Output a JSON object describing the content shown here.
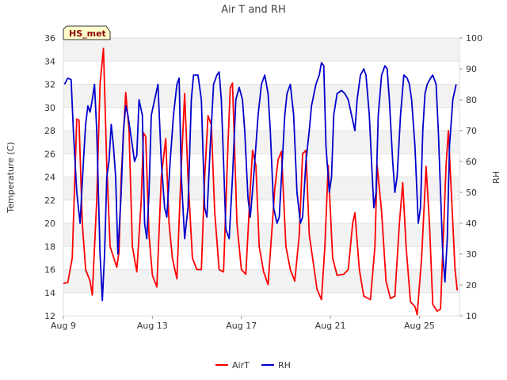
{
  "chart_data": {
    "type": "line",
    "title": "Air T and RH",
    "badge": "HS_met",
    "xlabel": "",
    "ylabel_left": "Temperature (C)",
    "ylabel_right": "RH",
    "x_unit": "day_of_august",
    "xlim": [
      9,
      26.8
    ],
    "ylim_left": [
      12,
      36
    ],
    "ylim_right": [
      10,
      100
    ],
    "x_ticks": [
      {
        "value": 9,
        "label": "Aug 9"
      },
      {
        "value": 13,
        "label": "Aug 13"
      },
      {
        "value": 17,
        "label": "Aug 17"
      },
      {
        "value": 21,
        "label": "Aug 21"
      },
      {
        "value": 25,
        "label": "Aug 25"
      }
    ],
    "y_ticks_left": [
      "12",
      "14",
      "16",
      "18",
      "20",
      "22",
      "24",
      "26",
      "28",
      "30",
      "32",
      "34",
      "36"
    ],
    "y_ticks_right": [
      "10",
      "20",
      "30",
      "40",
      "50",
      "60",
      "70",
      "80",
      "90",
      "100"
    ],
    "legend_position": "bottom-center",
    "series": [
      {
        "name": "AirT",
        "color": "#ff0000",
        "axis": "left",
        "points": [
          [
            9.0,
            14.8
          ],
          [
            9.2,
            14.9
          ],
          [
            9.4,
            17.0
          ],
          [
            9.6,
            29.0
          ],
          [
            9.7,
            28.9
          ],
          [
            9.85,
            20.0
          ],
          [
            10.0,
            16.0
          ],
          [
            10.2,
            15.0
          ],
          [
            10.3,
            13.8
          ],
          [
            10.5,
            22.0
          ],
          [
            10.65,
            32.0
          ],
          [
            10.8,
            35.1
          ],
          [
            10.95,
            25.0
          ],
          [
            11.1,
            18.0
          ],
          [
            11.3,
            16.8
          ],
          [
            11.4,
            16.2
          ],
          [
            11.5,
            17.5
          ],
          [
            11.6,
            24.0
          ],
          [
            11.8,
            31.3
          ],
          [
            11.95,
            28.0
          ],
          [
            12.1,
            18.0
          ],
          [
            12.3,
            15.8
          ],
          [
            12.5,
            22.0
          ],
          [
            12.6,
            27.8
          ],
          [
            12.7,
            27.5
          ],
          [
            12.85,
            19.0
          ],
          [
            13.0,
            15.5
          ],
          [
            13.2,
            14.5
          ],
          [
            13.4,
            24.0
          ],
          [
            13.6,
            27.3
          ],
          [
            13.75,
            20.0
          ],
          [
            13.9,
            17.0
          ],
          [
            14.1,
            15.2
          ],
          [
            14.3,
            25.0
          ],
          [
            14.45,
            31.2
          ],
          [
            14.6,
            24.0
          ],
          [
            14.8,
            17.0
          ],
          [
            15.0,
            16.0
          ],
          [
            15.2,
            16.0
          ],
          [
            15.35,
            24.0
          ],
          [
            15.5,
            29.3
          ],
          [
            15.65,
            28.5
          ],
          [
            15.8,
            21.0
          ],
          [
            16.0,
            16.0
          ],
          [
            16.2,
            15.8
          ],
          [
            16.4,
            27.0
          ],
          [
            16.5,
            31.7
          ],
          [
            16.6,
            32.1
          ],
          [
            16.8,
            20.0
          ],
          [
            17.0,
            16.0
          ],
          [
            17.2,
            15.6
          ],
          [
            17.4,
            23.0
          ],
          [
            17.5,
            26.3
          ],
          [
            17.65,
            25.0
          ],
          [
            17.8,
            18.0
          ],
          [
            18.0,
            15.8
          ],
          [
            18.2,
            14.7
          ],
          [
            18.5,
            23.0
          ],
          [
            18.65,
            25.5
          ],
          [
            18.8,
            26.2
          ],
          [
            19.0,
            18.0
          ],
          [
            19.2,
            16.0
          ],
          [
            19.4,
            15.0
          ],
          [
            19.6,
            19.0
          ],
          [
            19.75,
            26.0
          ],
          [
            19.9,
            26.3
          ],
          [
            20.05,
            19.0
          ],
          [
            20.2,
            17.0
          ],
          [
            20.4,
            14.3
          ],
          [
            20.6,
            13.4
          ],
          [
            20.75,
            18.0
          ],
          [
            20.9,
            25.0
          ],
          [
            21.1,
            17.0
          ],
          [
            21.3,
            15.5
          ],
          [
            21.6,
            15.6
          ],
          [
            21.8,
            16.0
          ],
          [
            22.0,
            20.0
          ],
          [
            22.1,
            20.9
          ],
          [
            22.3,
            16.0
          ],
          [
            22.5,
            13.7
          ],
          [
            22.8,
            13.4
          ],
          [
            23.0,
            18.0
          ],
          [
            23.1,
            25.0
          ],
          [
            23.3,
            21.0
          ],
          [
            23.5,
            15.0
          ],
          [
            23.7,
            13.5
          ],
          [
            23.9,
            13.7
          ],
          [
            24.1,
            20.0
          ],
          [
            24.25,
            23.5
          ],
          [
            24.4,
            18.0
          ],
          [
            24.6,
            13.2
          ],
          [
            24.8,
            12.8
          ],
          [
            24.9,
            12.1
          ],
          [
            25.1,
            17.0
          ],
          [
            25.3,
            24.9
          ],
          [
            25.45,
            20.0
          ],
          [
            25.6,
            13.0
          ],
          [
            25.8,
            12.4
          ],
          [
            25.95,
            12.6
          ],
          [
            26.2,
            25.0
          ],
          [
            26.3,
            28.0
          ],
          [
            26.45,
            22.0
          ],
          [
            26.6,
            16.0
          ],
          [
            26.7,
            14.2
          ]
        ]
      },
      {
        "name": "RH",
        "color": "#0000cc",
        "axis": "right",
        "points": [
          [
            9.05,
            85.0
          ],
          [
            9.2,
            87.0
          ],
          [
            9.35,
            86.5
          ],
          [
            9.45,
            70.0
          ],
          [
            9.6,
            50.0
          ],
          [
            9.75,
            40.0
          ],
          [
            9.9,
            60.0
          ],
          [
            10.0,
            72.0
          ],
          [
            10.1,
            78.0
          ],
          [
            10.2,
            76.0
          ],
          [
            10.3,
            80.0
          ],
          [
            10.4,
            85.0
          ],
          [
            10.5,
            70.0
          ],
          [
            10.65,
            30.0
          ],
          [
            10.75,
            15.0
          ],
          [
            10.85,
            30.0
          ],
          [
            10.95,
            55.0
          ],
          [
            11.05,
            60.0
          ],
          [
            11.15,
            72.0
          ],
          [
            11.25,
            65.0
          ],
          [
            11.35,
            55.0
          ],
          [
            11.45,
            30.0
          ],
          [
            11.6,
            50.0
          ],
          [
            11.7,
            70.0
          ],
          [
            11.8,
            78.0
          ],
          [
            11.9,
            75.0
          ],
          [
            12.0,
            70.0
          ],
          [
            12.1,
            65.0
          ],
          [
            12.2,
            60.0
          ],
          [
            12.3,
            62.0
          ],
          [
            12.4,
            80.0
          ],
          [
            12.55,
            75.0
          ],
          [
            12.65,
            40.0
          ],
          [
            12.75,
            35.0
          ],
          [
            12.85,
            50.0
          ],
          [
            12.95,
            75.0
          ],
          [
            13.1,
            80.0
          ],
          [
            13.25,
            85.0
          ],
          [
            13.4,
            60.0
          ],
          [
            13.55,
            45.0
          ],
          [
            13.65,
            42.0
          ],
          [
            13.8,
            60.0
          ],
          [
            13.95,
            75.0
          ],
          [
            14.1,
            85.0
          ],
          [
            14.2,
            87.0
          ],
          [
            14.3,
            55.0
          ],
          [
            14.45,
            35.0
          ],
          [
            14.6,
            45.0
          ],
          [
            14.75,
            80.0
          ],
          [
            14.85,
            88.0
          ],
          [
            15.05,
            88.0
          ],
          [
            15.2,
            80.0
          ],
          [
            15.35,
            45.0
          ],
          [
            15.45,
            42.0
          ],
          [
            15.6,
            65.0
          ],
          [
            15.75,
            85.0
          ],
          [
            15.9,
            88.0
          ],
          [
            16.0,
            89.0
          ],
          [
            16.1,
            80.0
          ],
          [
            16.2,
            60.0
          ],
          [
            16.3,
            38.0
          ],
          [
            16.45,
            35.0
          ],
          [
            16.6,
            55.0
          ],
          [
            16.75,
            80.0
          ],
          [
            16.9,
            84.0
          ],
          [
            17.05,
            80.0
          ],
          [
            17.15,
            70.0
          ],
          [
            17.3,
            48.0
          ],
          [
            17.4,
            42.0
          ],
          [
            17.55,
            55.0
          ],
          [
            17.75,
            75.0
          ],
          [
            17.9,
            85.0
          ],
          [
            18.05,
            88.0
          ],
          [
            18.2,
            82.0
          ],
          [
            18.3,
            70.0
          ],
          [
            18.45,
            45.0
          ],
          [
            18.6,
            40.0
          ],
          [
            18.7,
            42.0
          ],
          [
            18.8,
            55.0
          ],
          [
            18.95,
            75.0
          ],
          [
            19.05,
            82.0
          ],
          [
            19.2,
            85.0
          ],
          [
            19.35,
            75.0
          ],
          [
            19.5,
            50.0
          ],
          [
            19.65,
            40.0
          ],
          [
            19.75,
            42.0
          ],
          [
            19.9,
            60.0
          ],
          [
            20.05,
            70.0
          ],
          [
            20.15,
            78.0
          ],
          [
            20.35,
            85.0
          ],
          [
            20.5,
            88.0
          ],
          [
            20.6,
            92.0
          ],
          [
            20.7,
            91.0
          ],
          [
            20.8,
            65.0
          ],
          [
            20.95,
            50.0
          ],
          [
            21.05,
            55.0
          ],
          [
            21.15,
            75.0
          ],
          [
            21.3,
            82.0
          ],
          [
            21.5,
            83.0
          ],
          [
            21.65,
            82.0
          ],
          [
            21.8,
            80.0
          ],
          [
            21.95,
            75.0
          ],
          [
            22.1,
            70.0
          ],
          [
            22.2,
            80.0
          ],
          [
            22.35,
            88.0
          ],
          [
            22.5,
            90.0
          ],
          [
            22.6,
            88.0
          ],
          [
            22.75,
            75.0
          ],
          [
            22.85,
            60.0
          ],
          [
            22.95,
            45.0
          ],
          [
            23.05,
            50.0
          ],
          [
            23.15,
            75.0
          ],
          [
            23.3,
            88.0
          ],
          [
            23.45,
            91.0
          ],
          [
            23.55,
            90.0
          ],
          [
            23.65,
            80.0
          ],
          [
            23.8,
            60.0
          ],
          [
            23.9,
            50.0
          ],
          [
            24.0,
            55.0
          ],
          [
            24.15,
            75.0
          ],
          [
            24.3,
            88.0
          ],
          [
            24.45,
            87.0
          ],
          [
            24.55,
            85.0
          ],
          [
            24.65,
            80.0
          ],
          [
            24.8,
            65.0
          ],
          [
            24.95,
            40.0
          ],
          [
            25.05,
            45.0
          ],
          [
            25.15,
            70.0
          ],
          [
            25.25,
            82.0
          ],
          [
            25.35,
            85.0
          ],
          [
            25.5,
            87.0
          ],
          [
            25.6,
            88.0
          ],
          [
            25.75,
            85.0
          ],
          [
            25.85,
            70.0
          ],
          [
            25.95,
            50.0
          ],
          [
            26.05,
            30.0
          ],
          [
            26.15,
            21.0
          ],
          [
            26.25,
            35.0
          ],
          [
            26.35,
            65.0
          ],
          [
            26.5,
            80.0
          ],
          [
            26.65,
            85.0
          ]
        ]
      }
    ]
  }
}
